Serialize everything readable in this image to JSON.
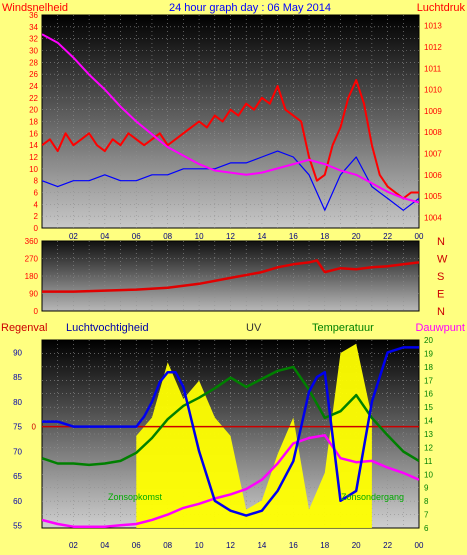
{
  "header": {
    "left_label": "Windsnelheid",
    "title": "24 hour graph day : 06 May 2014",
    "right_label": "Luchtdruk"
  },
  "colors": {
    "page_bg": "#ffff80",
    "wind": "#ff0000",
    "gust": "#0000ff",
    "pressure": "#ff00ff",
    "direction": "#e00000",
    "humidity": "#0000ee",
    "temperature": "#008000",
    "dewpoint": "#ff00ff",
    "rain": "#cc0000",
    "uv": "#ffff00",
    "sun": "#000000",
    "axis_text_left": "#ff0000",
    "axis_text_right_top": "#ff0000",
    "axis_text_right_bottom": "#008000"
  },
  "x_ticks": [
    "02",
    "04",
    "06",
    "08",
    "10",
    "12",
    "14",
    "16",
    "18",
    "20",
    "22",
    "00"
  ],
  "chart_data": [
    {
      "type": "line",
      "panel": "wind-pressure",
      "xlabel": "",
      "ylabel_left": "Windsnelheid",
      "ylabel_right": "Luchtdruk",
      "x_range": [
        0,
        24
      ],
      "left_ylim": [
        0,
        36
      ],
      "left_ticks": [
        "0",
        "2",
        "4",
        "6",
        "8",
        "10",
        "12",
        "14",
        "16",
        "18",
        "20",
        "22",
        "24",
        "26",
        "28",
        "30",
        "32",
        "34",
        "36"
      ],
      "right_ylim": [
        1003.5,
        1013.5
      ],
      "right_ticks": [
        "1004",
        "1005",
        "1006",
        "1007",
        "1008",
        "1009",
        "1010",
        "1011",
        "1012",
        "1013"
      ],
      "grid": true,
      "series": [
        {
          "name": "Windsnelheid",
          "x": [
            0,
            0.5,
            1,
            1.5,
            2,
            2.5,
            3,
            3.5,
            4,
            4.5,
            5,
            5.5,
            6,
            6.5,
            7,
            7.5,
            8,
            8.5,
            9,
            9.5,
            10,
            10.5,
            11,
            11.5,
            12,
            12.5,
            13,
            13.5,
            14,
            14.5,
            15,
            15.5,
            16,
            16.5,
            17,
            17.5,
            18,
            18.5,
            19,
            19.5,
            20,
            20.5,
            21,
            21.5,
            22,
            22.5,
            23,
            23.5,
            24
          ],
          "y": [
            14,
            15,
            13,
            16,
            14,
            15,
            16,
            14,
            13,
            15,
            14,
            16,
            15,
            14,
            15,
            16,
            14,
            15,
            16,
            17,
            18,
            17,
            19,
            18,
            20,
            19,
            21,
            20,
            22,
            21,
            24,
            20,
            19,
            18,
            12,
            8,
            9,
            14,
            17,
            22,
            25,
            21,
            14,
            9,
            7,
            6,
            5,
            6,
            6
          ]
        },
        {
          "name": "Windstoot",
          "x": [
            0,
            1,
            2,
            3,
            4,
            5,
            6,
            7,
            8,
            9,
            10,
            11,
            12,
            13,
            14,
            15,
            16,
            17,
            18,
            19,
            20,
            21,
            22,
            23,
            24
          ],
          "y": [
            8,
            7,
            8,
            8,
            9,
            8,
            8,
            9,
            9,
            10,
            10,
            10,
            11,
            11,
            12,
            13,
            12,
            9,
            3,
            9,
            12,
            7,
            5,
            3,
            5
          ]
        },
        {
          "name": "Luchtdruk",
          "x": [
            0,
            1,
            2,
            3,
            4,
            5,
            6,
            7,
            8,
            9,
            10,
            11,
            12,
            13,
            14,
            15,
            16,
            17,
            18,
            19,
            20,
            21,
            22,
            23,
            24
          ],
          "y": [
            1012.6,
            1012.2,
            1011.5,
            1010.7,
            1010.0,
            1009.2,
            1008.5,
            1007.9,
            1007.3,
            1006.9,
            1006.5,
            1006.2,
            1006.1,
            1006.0,
            1006.1,
            1006.3,
            1006.5,
            1006.7,
            1006.5,
            1006.2,
            1006.0,
            1005.6,
            1005.2,
            1004.9,
            1004.7
          ]
        }
      ]
    },
    {
      "type": "line",
      "panel": "wind-direction",
      "x_range": [
        0,
        24
      ],
      "ylim": [
        0,
        360
      ],
      "left_ticks": [
        "0",
        "90",
        "180",
        "270",
        "360"
      ],
      "right_ticks": [
        "N",
        "E",
        "S",
        "W",
        "N"
      ],
      "grid": true,
      "series": [
        {
          "name": "Windrichting",
          "x": [
            0,
            2,
            4,
            6,
            8,
            10,
            12,
            14,
            15,
            16,
            17,
            17.5,
            18,
            19,
            20,
            21,
            22,
            23,
            24
          ],
          "y": [
            100,
            100,
            105,
            110,
            120,
            140,
            170,
            200,
            225,
            240,
            250,
            260,
            200,
            220,
            215,
            225,
            230,
            240,
            250
          ]
        }
      ]
    },
    {
      "type": "line",
      "panel": "humidity-temp",
      "legend": [
        "Regenval",
        "Luchtvochtigheid",
        "UV",
        "Temperatuur",
        "Dauwpunt"
      ],
      "x_range": [
        0,
        24
      ],
      "left_ylim": [
        54.5,
        92.5
      ],
      "left_ticks": [
        "55",
        "60",
        "65",
        "70",
        "75",
        "80",
        "85",
        "90"
      ],
      "left_zero_label": "0",
      "right_ylim": [
        6,
        20
      ],
      "right_ticks": [
        "6",
        "7",
        "8",
        "9",
        "10",
        "11",
        "12",
        "13",
        "14",
        "15",
        "16",
        "17",
        "18",
        "19",
        "20"
      ],
      "annotations": [
        "Zonsopkomst",
        "Zonsondergang"
      ],
      "grid": true,
      "series": [
        {
          "name": "Luchtvochtigheid",
          "x": [
            0,
            1,
            2,
            3,
            4,
            5,
            6,
            6.5,
            7,
            7.5,
            8,
            8.5,
            9,
            10,
            11,
            12,
            13,
            14,
            15,
            16,
            16.5,
            17,
            17.5,
            18,
            19,
            20,
            21,
            21.5,
            22,
            23,
            24
          ],
          "y": [
            76,
            76,
            75,
            75,
            75,
            75,
            75,
            77,
            80,
            84,
            86,
            86,
            83,
            70,
            60,
            58,
            57,
            58,
            62,
            68,
            75,
            82,
            85,
            86,
            60,
            62,
            80,
            85,
            90,
            91,
            91
          ]
        },
        {
          "name": "Temperatuur",
          "x": [
            0,
            1,
            2,
            3,
            4,
            5,
            6,
            7,
            8,
            9,
            10,
            11,
            12,
            13,
            14,
            15,
            16,
            17,
            18,
            19,
            20,
            21,
            22,
            23,
            24
          ],
          "y": [
            11.2,
            10.8,
            10.8,
            10.7,
            10.8,
            11.0,
            11.6,
            12.7,
            14.1,
            15.1,
            15.7,
            16.4,
            17.2,
            16.5,
            17.1,
            17.7,
            18.0,
            16.3,
            14.2,
            14.7,
            15.9,
            14.2,
            12.9,
            11.7,
            11.0
          ]
        },
        {
          "name": "Dauwpunt",
          "x": [
            0,
            1,
            2,
            3,
            4,
            5,
            6,
            7,
            8,
            9,
            10,
            11,
            12,
            13,
            14,
            15,
            16,
            17,
            18,
            19,
            20,
            21,
            22,
            23,
            24
          ],
          "y": [
            6.6,
            6.3,
            6.1,
            6.1,
            6.1,
            6.2,
            6.3,
            6.6,
            7.0,
            7.5,
            7.8,
            8.2,
            8.5,
            8.9,
            9.6,
            10.8,
            12.3,
            12.7,
            12.9,
            11.2,
            10.9,
            11.0,
            10.5,
            10.1,
            9.6
          ]
        },
        {
          "name": "UV",
          "x": [
            6,
            7,
            8,
            9,
            10,
            11,
            12,
            13,
            14,
            15,
            16,
            17,
            18,
            19,
            20,
            21
          ],
          "y": [
            0.5,
            0.6,
            0.9,
            0.7,
            0.8,
            0.6,
            0.5,
            0.1,
            0.15,
            0.4,
            0.6,
            0.1,
            0.3,
            0.95,
            1.0,
            0.6
          ]
        }
      ]
    }
  ]
}
